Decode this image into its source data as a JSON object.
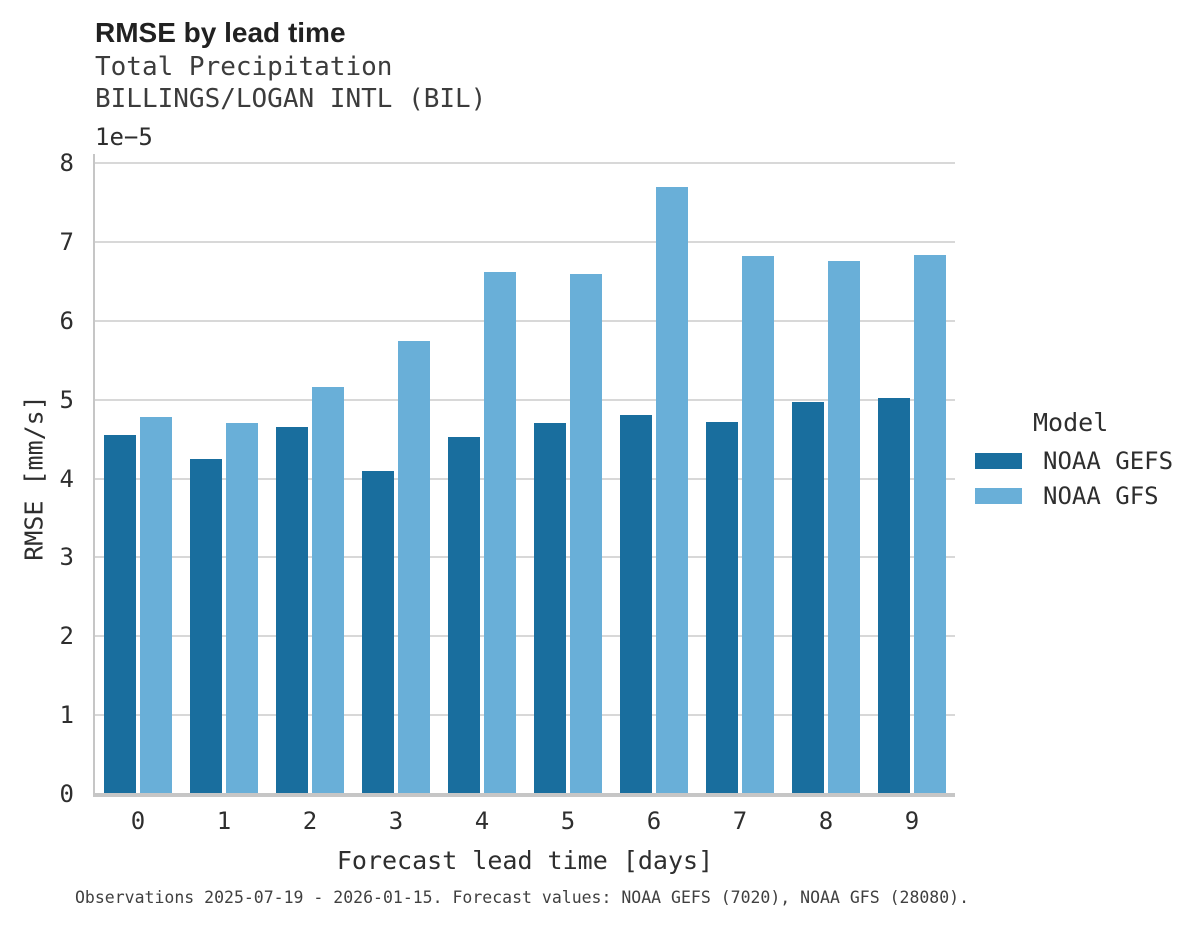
{
  "header": {
    "title": "RMSE by lead time",
    "subtitle_lines": [
      "Total Precipitation",
      "BILLINGS/LOGAN INTL (BIL)"
    ]
  },
  "chart_data": {
    "type": "bar",
    "title": "RMSE by lead time",
    "subtitle_lines": [
      "Total Precipitation",
      "BILLINGS/LOGAN INTL (BIL)"
    ],
    "xlabel": "Forecast lead time [days]",
    "ylabel": "RMSE [mm/s]",
    "y_offset_label": "1e−5",
    "value_units": "1e-5 mm/s",
    "categories": [
      "0",
      "1",
      "2",
      "3",
      "4",
      "5",
      "6",
      "7",
      "8",
      "9"
    ],
    "series": [
      {
        "name": "NOAA GEFS",
        "color": "#196e9e",
        "values": [
          4.55,
          4.25,
          4.65,
          4.1,
          4.53,
          4.7,
          4.8,
          4.72,
          4.97,
          5.02
        ]
      },
      {
        "name": "NOAA GFS",
        "color": "#69afd8",
        "values": [
          4.78,
          4.71,
          5.16,
          5.74,
          6.62,
          6.59,
          7.69,
          6.82,
          6.76,
          6.83
        ]
      }
    ],
    "ylim": [
      0,
      8
    ],
    "yticks": [
      0,
      1,
      2,
      3,
      4,
      5,
      6,
      7,
      8
    ],
    "grid": true,
    "legend_title": "Model",
    "legend_position": "right"
  },
  "colors": {
    "series_dark": "#196e9e",
    "series_light": "#69afd8",
    "gridline": "#d8d8d8",
    "axis_spine": "#c6c6c6",
    "title_text": "#212121",
    "body_text": "#2e2e2e"
  },
  "footer": {
    "note": "Observations 2025-07-19 - 2026-01-15. Forecast values: NOAA GEFS (7020), NOAA GFS (28080)."
  }
}
